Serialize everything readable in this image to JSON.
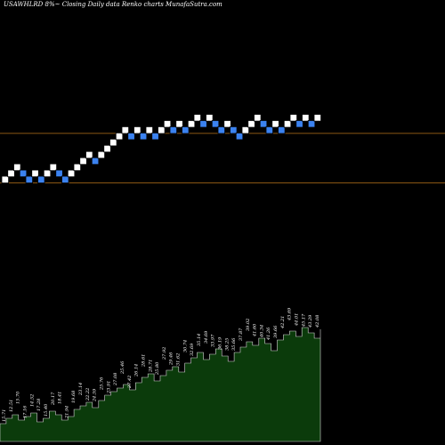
{
  "title": "USAWHLRD 8%~  Closing Daily data  Renko  charts MunafaSutra.com",
  "colors": {
    "background": "#000000",
    "brick_up": "#ffffff",
    "brick_down": "#3b82f0",
    "line": "#b8741a",
    "volume_fill": "#0b3b0b",
    "volume_stroke": "#d8d8d8",
    "label": "#ffffff"
  },
  "chart_data": {
    "type": "renko",
    "bricks": [
      {
        "i": 0,
        "level": 0,
        "dir": "up"
      },
      {
        "i": 1,
        "level": 1,
        "dir": "up"
      },
      {
        "i": 2,
        "level": 2,
        "dir": "up"
      },
      {
        "i": 3,
        "level": 1,
        "dir": "down"
      },
      {
        "i": 4,
        "level": 0,
        "dir": "down"
      },
      {
        "i": 5,
        "level": 1,
        "dir": "up"
      },
      {
        "i": 6,
        "level": 0,
        "dir": "down"
      },
      {
        "i": 7,
        "level": 1,
        "dir": "up"
      },
      {
        "i": 8,
        "level": 2,
        "dir": "up"
      },
      {
        "i": 9,
        "level": 1,
        "dir": "down"
      },
      {
        "i": 10,
        "level": 0,
        "dir": "down"
      },
      {
        "i": 11,
        "level": 1,
        "dir": "up"
      },
      {
        "i": 12,
        "level": 2,
        "dir": "up"
      },
      {
        "i": 13,
        "level": 3,
        "dir": "up"
      },
      {
        "i": 14,
        "level": 4,
        "dir": "up"
      },
      {
        "i": 15,
        "level": 3,
        "dir": "down"
      },
      {
        "i": 16,
        "level": 4,
        "dir": "up"
      },
      {
        "i": 17,
        "level": 5,
        "dir": "up"
      },
      {
        "i": 18,
        "level": 6,
        "dir": "up"
      },
      {
        "i": 19,
        "level": 7,
        "dir": "up"
      },
      {
        "i": 20,
        "level": 8,
        "dir": "up"
      },
      {
        "i": 21,
        "level": 7,
        "dir": "down"
      },
      {
        "i": 22,
        "level": 8,
        "dir": "up"
      },
      {
        "i": 23,
        "level": 7,
        "dir": "down"
      },
      {
        "i": 24,
        "level": 8,
        "dir": "up"
      },
      {
        "i": 25,
        "level": 7,
        "dir": "down"
      },
      {
        "i": 26,
        "level": 8,
        "dir": "up"
      },
      {
        "i": 27,
        "level": 9,
        "dir": "up"
      },
      {
        "i": 28,
        "level": 8,
        "dir": "down"
      },
      {
        "i": 29,
        "level": 9,
        "dir": "up"
      },
      {
        "i": 30,
        "level": 8,
        "dir": "down"
      },
      {
        "i": 31,
        "level": 9,
        "dir": "up"
      },
      {
        "i": 32,
        "level": 10,
        "dir": "up"
      },
      {
        "i": 33,
        "level": 9,
        "dir": "down"
      },
      {
        "i": 34,
        "level": 10,
        "dir": "up"
      },
      {
        "i": 35,
        "level": 9,
        "dir": "down"
      },
      {
        "i": 36,
        "level": 8,
        "dir": "down"
      },
      {
        "i": 37,
        "level": 9,
        "dir": "up"
      },
      {
        "i": 38,
        "level": 8,
        "dir": "down"
      },
      {
        "i": 39,
        "level": 7,
        "dir": "down"
      },
      {
        "i": 40,
        "level": 8,
        "dir": "up"
      },
      {
        "i": 41,
        "level": 9,
        "dir": "up"
      },
      {
        "i": 42,
        "level": 10,
        "dir": "up"
      },
      {
        "i": 43,
        "level": 9,
        "dir": "down"
      },
      {
        "i": 44,
        "level": 8,
        "dir": "down"
      },
      {
        "i": 45,
        "level": 9,
        "dir": "up"
      },
      {
        "i": 46,
        "level": 8,
        "dir": "down"
      },
      {
        "i": 47,
        "level": 9,
        "dir": "up"
      },
      {
        "i": 48,
        "level": 10,
        "dir": "up"
      },
      {
        "i": 49,
        "level": 9,
        "dir": "down"
      },
      {
        "i": 50,
        "level": 10,
        "dir": "up"
      },
      {
        "i": 51,
        "level": 9,
        "dir": "down"
      },
      {
        "i": 52,
        "level": 10,
        "dir": "up"
      }
    ],
    "reference_lines": [
      {
        "level": 7.5
      },
      {
        "level": -0.5
      }
    ],
    "volume": [
      10,
      13,
      15,
      12,
      14,
      16,
      11,
      13,
      17,
      15,
      12,
      14,
      18,
      20,
      22,
      19,
      23,
      26,
      28,
      30,
      32,
      29,
      33,
      36,
      38,
      34,
      37,
      40,
      42,
      39,
      44,
      47,
      50,
      46,
      49,
      52,
      48,
      45,
      50,
      53,
      56,
      54,
      58,
      55,
      51,
      57,
      60,
      62,
      59,
      64,
      61,
      58,
      63
    ],
    "volume_labels": [
      "15.71",
      "12.51",
      "15.70",
      "17.16",
      "14.52",
      "17.28",
      "15.40",
      "20.17",
      "18.41",
      "21.94",
      "19.68",
      "23.14",
      "22.22",
      "24.59",
      "25.76",
      "23.91",
      "27.08",
      "25.46",
      "27.42",
      "26.14",
      "28.61",
      "28.71",
      "25.80",
      "27.92",
      "29.46",
      "31.62",
      "30.74",
      "32.69",
      "35.14",
      "34.69",
      "33.97",
      "36.19",
      "38.25",
      "35.66",
      "37.87",
      "39.02",
      "41.60",
      "40.34",
      "41.26",
      "39.66",
      "42.21",
      "43.69",
      "44.01",
      "45.17",
      "43.29",
      "42.08"
    ]
  }
}
